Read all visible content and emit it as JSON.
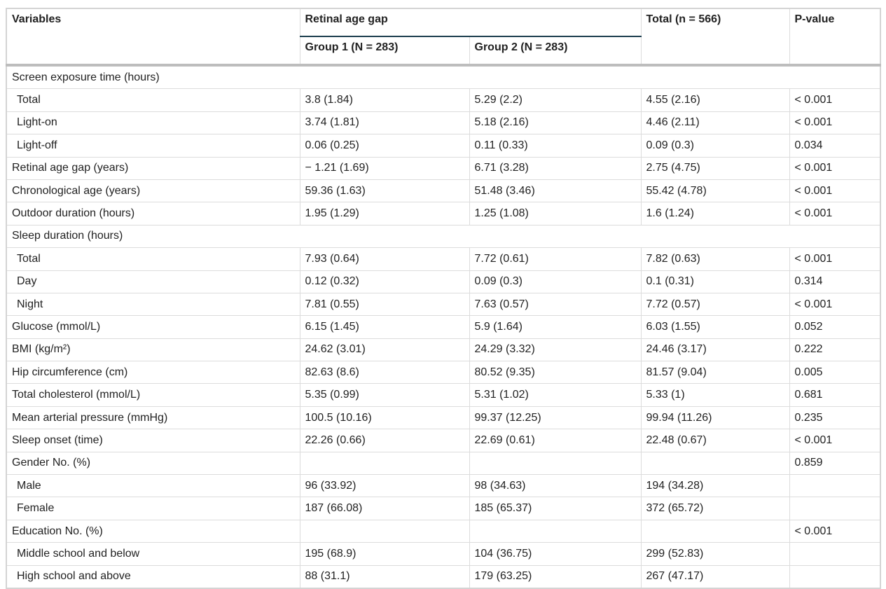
{
  "header": {
    "variables": "Variables",
    "group_span": "Retinal age gap",
    "group1": "Group 1 (N = 283)",
    "group2": "Group 2 (N = 283)",
    "total": "Total (n = 566)",
    "p_value": "P-value"
  },
  "rows": [
    {
      "label": "Screen exposure time (hours)"
    },
    {
      "label": "Total",
      "indent": true,
      "cells": [
        "3.8 (1.84)",
        "5.29 (2.2)",
        "4.55 (2.16)",
        "< 0.001"
      ]
    },
    {
      "label": "Light-on",
      "indent": true,
      "cells": [
        "3.74 (1.81)",
        "5.18 (2.16)",
        "4.46 (2.11)",
        "< 0.001"
      ]
    },
    {
      "label": "Light-off",
      "indent": true,
      "cells": [
        "0.06 (0.25)",
        "0.11 (0.33)",
        "0.09 (0.3)",
        "0.034"
      ]
    },
    {
      "label": "Retinal age gap (years)",
      "cells": [
        "− 1.21 (1.69)",
        "6.71 (3.28)",
        "2.75 (4.75)",
        "< 0.001"
      ]
    },
    {
      "label": "Chronological age (years)",
      "cells": [
        "59.36 (1.63)",
        "51.48 (3.46)",
        "55.42 (4.78)",
        "< 0.001"
      ]
    },
    {
      "label": "Outdoor duration (hours)",
      "cells": [
        "1.95 (1.29)",
        "1.25 (1.08)",
        "1.6 (1.24)",
        "< 0.001"
      ]
    },
    {
      "label": "Sleep duration (hours)"
    },
    {
      "label": "Total",
      "indent": true,
      "cells": [
        "7.93 (0.64)",
        "7.72 (0.61)",
        "7.82 (0.63)",
        "< 0.001"
      ]
    },
    {
      "label": "Day",
      "indent": true,
      "cells": [
        "0.12 (0.32)",
        "0.09 (0.3)",
        "0.1 (0.31)",
        "0.314"
      ]
    },
    {
      "label": "Night",
      "indent": true,
      "cells": [
        "7.81 (0.55)",
        "7.63 (0.57)",
        "7.72 (0.57)",
        "< 0.001"
      ]
    },
    {
      "label": "Glucose (mmol/L)",
      "cells": [
        "6.15 (1.45)",
        "5.9 (1.64)",
        "6.03 (1.55)",
        "0.052"
      ]
    },
    {
      "label": "BMI (kg/m²)",
      "cells": [
        "24.62 (3.01)",
        "24.29 (3.32)",
        "24.46 (3.17)",
        "0.222"
      ]
    },
    {
      "label": "Hip circumference (cm)",
      "cells": [
        "82.63 (8.6)",
        "80.52 (9.35)",
        "81.57 (9.04)",
        "0.005"
      ]
    },
    {
      "label": "Total cholesterol (mmol/L)",
      "cells": [
        "5.35 (0.99)",
        "5.31 (1.02)",
        "5.33 (1)",
        "0.681"
      ]
    },
    {
      "label": "Mean arterial pressure (mmHg)",
      "cells": [
        "100.5 (10.16)",
        "99.37 (12.25)",
        "99.94 (11.26)",
        "0.235"
      ]
    },
    {
      "label": "Sleep onset (time)",
      "cells": [
        "22.26 (0.66)",
        "22.69 (0.61)",
        "22.48 (0.67)",
        "< 0.001"
      ]
    },
    {
      "label": "Gender No. (%)",
      "cells": [
        null,
        null,
        null,
        "0.859"
      ]
    },
    {
      "label": "Male",
      "indent": true,
      "cells": [
        "96 (33.92)",
        "98 (34.63)",
        "194 (34.28)",
        null
      ]
    },
    {
      "label": "Female",
      "indent": true,
      "cells": [
        "187 (66.08)",
        "185 (65.37)",
        "372 (65.72)",
        null
      ]
    },
    {
      "label": "Education No. (%)",
      "cells": [
        null,
        null,
        null,
        "< 0.001"
      ]
    },
    {
      "label": "Middle school and below",
      "indent": true,
      "cells": [
        "195 (68.9)",
        "104 (36.75)",
        "299 (52.83)",
        null
      ]
    },
    {
      "label": "High school and above",
      "indent": true,
      "cells": [
        "88 (31.1)",
        "179 (63.25)",
        "267 (47.17)",
        null
      ]
    }
  ]
}
